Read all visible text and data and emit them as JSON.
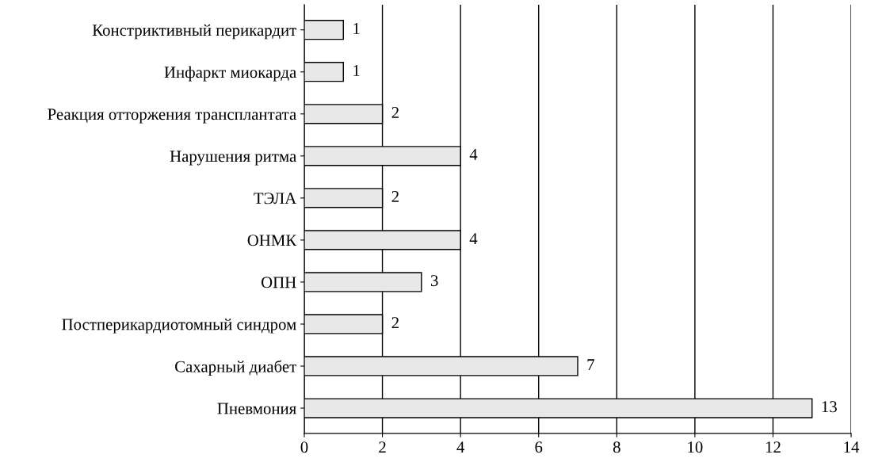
{
  "chart_data": {
    "type": "bar",
    "orientation": "horizontal",
    "categories": [
      "Констриктивный перикардит",
      "Инфаркт миокарда",
      "Реакция отторжения трансплантата",
      "Нарушения ритма",
      "ТЭЛА",
      "ОНМК",
      "ОПН",
      "Постперикардиотомный синдром",
      "Сахарный диабет",
      "Пневмония"
    ],
    "values": [
      1,
      1,
      2,
      4,
      2,
      4,
      3,
      2,
      7,
      13
    ],
    "color": "#e8e8e8",
    "data_labels": true,
    "grid": "x",
    "xlim": [
      0,
      14
    ],
    "xticks": [
      0,
      2,
      4,
      6,
      8,
      10,
      12,
      14
    ]
  }
}
